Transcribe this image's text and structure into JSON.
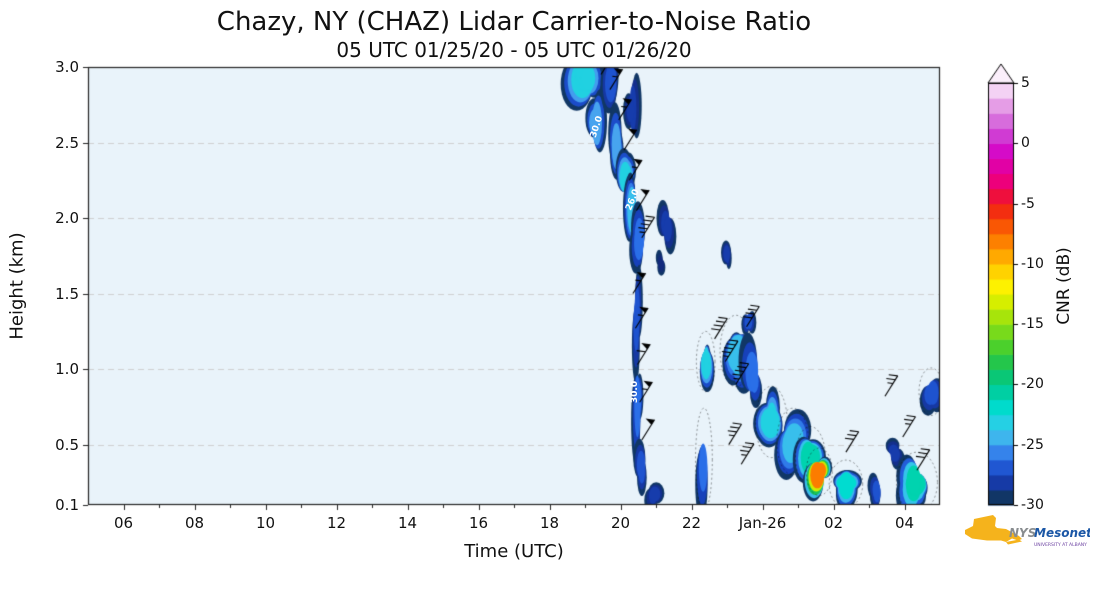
{
  "title": "Chazy, NY (CHAZ) Lidar Carrier-to-Noise Ratio",
  "subtitle": "05 UTC 01/25/20 - 05 UTC 01/26/20",
  "logo": {
    "nys": "NYS",
    "mesonet": "Mesonet",
    "subtext": "UNIVERSITY AT ALBANY",
    "gold": "#f5b31c",
    "nys_color": "#898d90",
    "mesonet_color": "#1b57a6",
    "subtext_color": "#6a3fa0"
  },
  "chart_data": {
    "type": "heatmap",
    "title": "Chazy, NY (CHAZ) Lidar Carrier-to-Noise Ratio",
    "subtitle": "05 UTC 01/25/20 - 05 UTC 01/26/20",
    "xlabel": "Time (UTC)",
    "ylabel": "Height (km)",
    "x_range": [
      5,
      29
    ],
    "y_range": [
      0.1,
      3.0
    ],
    "plot_bg": "#e9f3fa",
    "grid": {
      "horizontal_dashed": true,
      "color": "#cccccc"
    },
    "x_ticks": [
      {
        "hour": 6,
        "label": "06"
      },
      {
        "hour": 8,
        "label": "08"
      },
      {
        "hour": 10,
        "label": "10"
      },
      {
        "hour": 12,
        "label": "12"
      },
      {
        "hour": 14,
        "label": "14"
      },
      {
        "hour": 16,
        "label": "16"
      },
      {
        "hour": 18,
        "label": "18"
      },
      {
        "hour": 20,
        "label": "20"
      },
      {
        "hour": 22,
        "label": "22"
      },
      {
        "hour": 24,
        "label": "Jan-26"
      },
      {
        "hour": 26,
        "label": "02"
      },
      {
        "hour": 28,
        "label": "04"
      }
    ],
    "y_ticks": [
      {
        "value": 0.1,
        "label": "0.1"
      },
      {
        "value": 0.5,
        "label": "0.5"
      },
      {
        "value": 1.0,
        "label": "1.0"
      },
      {
        "value": 1.5,
        "label": "1.5"
      },
      {
        "value": 2.0,
        "label": "2.0"
      },
      {
        "value": 2.5,
        "label": "2.5"
      },
      {
        "value": 3.0,
        "label": "3.0"
      }
    ],
    "colorbar": {
      "label": "CNR (dB)",
      "range": [
        -30,
        5
      ],
      "over_arrow": true,
      "ticks": [
        {
          "value": 5,
          "label": "5"
        },
        {
          "value": 0,
          "label": "0"
        },
        {
          "value": -5,
          "label": "-5"
        },
        {
          "value": -10,
          "label": "-10"
        },
        {
          "value": -15,
          "label": "-15"
        },
        {
          "value": -20,
          "label": "-20"
        },
        {
          "value": -25,
          "label": "-25"
        },
        {
          "value": -30,
          "label": "-30"
        }
      ]
    },
    "colormap_stops": [
      [
        -30,
        "#0d4a3f"
      ],
      [
        -29,
        "#132a7e"
      ],
      [
        -27.5,
        "#1845c3"
      ],
      [
        -26,
        "#2a6fe8"
      ],
      [
        -25,
        "#47a4ef"
      ],
      [
        -23.5,
        "#31ccea"
      ],
      [
        -22,
        "#00dcd0"
      ],
      [
        -20,
        "#00c98e"
      ],
      [
        -18.5,
        "#19c355"
      ],
      [
        -17,
        "#46cf2e"
      ],
      [
        -15,
        "#8fdf13"
      ],
      [
        -13.5,
        "#c9ec00"
      ],
      [
        -12,
        "#fdf400"
      ],
      [
        -10.5,
        "#ffcf00"
      ],
      [
        -9,
        "#ff9c00"
      ],
      [
        -7.5,
        "#fb6c00"
      ],
      [
        -6,
        "#f63a0a"
      ],
      [
        -5,
        "#ee1a1a"
      ],
      [
        -3.5,
        "#f0006e"
      ],
      [
        -2,
        "#e200a2"
      ],
      [
        -0.5,
        "#d40ccb"
      ],
      [
        1,
        "#cf4ad6"
      ],
      [
        2.5,
        "#dd84e0"
      ],
      [
        4,
        "#efc0ef"
      ],
      [
        5,
        "#fbeffb"
      ]
    ],
    "patches": [
      {
        "t": 19.0,
        "h": 2.93,
        "w": 1.0,
        "ht": 0.38,
        "v": -23,
        "dot": 0
      },
      {
        "t": 19.3,
        "h": 2.62,
        "w": 0.55,
        "ht": 0.5,
        "v": -25,
        "dot": 0
      },
      {
        "t": 19.75,
        "h": 2.9,
        "w": 0.55,
        "ht": 0.45,
        "v": -27,
        "dot": 0
      },
      {
        "t": 20.3,
        "h": 2.72,
        "w": 0.6,
        "ht": 0.5,
        "v": -28,
        "dot": 0
      },
      {
        "t": 19.9,
        "h": 2.45,
        "w": 0.5,
        "ht": 0.45,
        "v": -25,
        "dot": 0
      },
      {
        "t": 20.15,
        "h": 2.25,
        "w": 0.5,
        "ht": 0.45,
        "v": -23,
        "dot": 0
      },
      {
        "t": 20.35,
        "h": 2.05,
        "w": 0.5,
        "ht": 0.5,
        "v": -24,
        "dot": 0
      },
      {
        "t": 20.55,
        "h": 1.85,
        "w": 0.45,
        "ht": 0.4,
        "v": -26,
        "dot": 0
      },
      {
        "t": 21.3,
        "h": 1.95,
        "w": 0.55,
        "ht": 0.35,
        "v": -28,
        "dot": 0
      },
      {
        "t": 21.15,
        "h": 1.7,
        "w": 0.3,
        "ht": 0.2,
        "v": -29,
        "dot": 0
      },
      {
        "t": 20.45,
        "h": 1.35,
        "w": 0.35,
        "ht": 0.75,
        "v": -27,
        "dot": 0
      },
      {
        "t": 20.5,
        "h": 0.8,
        "w": 0.32,
        "ht": 0.65,
        "v": -26,
        "dot": 0
      },
      {
        "t": 20.6,
        "h": 0.35,
        "w": 0.4,
        "ht": 0.55,
        "v": -27,
        "dot": 0
      },
      {
        "t": 20.95,
        "h": 0.17,
        "w": 0.55,
        "ht": 0.2,
        "v": -28,
        "dot": 0
      },
      {
        "t": 22.4,
        "h": 1.05,
        "w": 0.5,
        "ht": 0.38,
        "v": -23,
        "dot": 1
      },
      {
        "t": 22.35,
        "h": 0.4,
        "w": 0.45,
        "ht": 0.65,
        "v": -26,
        "dot": 1
      },
      {
        "t": 23.0,
        "h": 1.76,
        "w": 0.32,
        "ht": 0.2,
        "v": -28,
        "dot": 0
      },
      {
        "t": 23.25,
        "h": 1.12,
        "w": 0.85,
        "ht": 0.45,
        "v": -24,
        "dot": 1
      },
      {
        "t": 23.75,
        "h": 0.95,
        "w": 0.6,
        "ht": 0.4,
        "v": -26,
        "dot": 0
      },
      {
        "t": 23.6,
        "h": 1.32,
        "w": 0.4,
        "ht": 0.25,
        "v": -27,
        "dot": 0
      },
      {
        "t": 24.25,
        "h": 0.65,
        "w": 0.85,
        "ht": 0.45,
        "v": -23,
        "dot": 1
      },
      {
        "t": 24.85,
        "h": 0.52,
        "w": 0.85,
        "ht": 0.42,
        "v": -24,
        "dot": 1
      },
      {
        "t": 25.35,
        "h": 0.42,
        "w": 0.8,
        "ht": 0.38,
        "v": -21,
        "dot": 1
      },
      {
        "t": 25.6,
        "h": 0.32,
        "w": 0.7,
        "ht": 0.3,
        "v": -8,
        "dot": 1
      },
      {
        "t": 26.35,
        "h": 0.24,
        "w": 0.9,
        "ht": 0.3,
        "v": -22,
        "dot": 1
      },
      {
        "t": 27.25,
        "h": 0.19,
        "w": 0.6,
        "ht": 0.22,
        "v": -27,
        "dot": 0
      },
      {
        "t": 27.7,
        "h": 0.45,
        "w": 0.45,
        "ht": 0.2,
        "v": -28,
        "dot": 0
      },
      {
        "t": 28.35,
        "h": 0.25,
        "w": 1.1,
        "ht": 0.38,
        "v": -21,
        "dot": 1
      },
      {
        "t": 28.75,
        "h": 0.85,
        "w": 0.65,
        "ht": 0.3,
        "v": -27,
        "dot": 1
      }
    ],
    "wind_barbs": [
      {
        "t": 19.45,
        "h": 2.95,
        "spd": 50
      },
      {
        "t": 19.7,
        "h": 2.85,
        "spd": 55
      },
      {
        "t": 19.95,
        "h": 2.65,
        "spd": 55
      },
      {
        "t": 20.1,
        "h": 2.45,
        "spd": 50
      },
      {
        "t": 20.25,
        "h": 2.25,
        "spd": 55
      },
      {
        "t": 20.45,
        "h": 2.05,
        "spd": 50
      },
      {
        "t": 20.6,
        "h": 1.87,
        "spd": 45
      },
      {
        "t": 20.35,
        "h": 1.5,
        "spd": 55
      },
      {
        "t": 20.42,
        "h": 1.27,
        "spd": 55
      },
      {
        "t": 20.48,
        "h": 1.03,
        "spd": 60
      },
      {
        "t": 20.54,
        "h": 0.78,
        "spd": 55
      },
      {
        "t": 20.6,
        "h": 0.53,
        "spd": 50
      },
      {
        "t": 22.65,
        "h": 1.2,
        "spd": 40
      },
      {
        "t": 22.95,
        "h": 1.05,
        "spd": 45
      },
      {
        "t": 23.25,
        "h": 0.9,
        "spd": 45
      },
      {
        "t": 23.55,
        "h": 1.28,
        "spd": 40
      },
      {
        "t": 23.05,
        "h": 0.5,
        "spd": 35
      },
      {
        "t": 23.4,
        "h": 0.37,
        "spd": 35
      },
      {
        "t": 26.35,
        "h": 0.45,
        "spd": 30
      },
      {
        "t": 27.45,
        "h": 0.82,
        "spd": 25
      },
      {
        "t": 27.95,
        "h": 0.55,
        "spd": 25
      },
      {
        "t": 28.35,
        "h": 0.33,
        "spd": 30
      }
    ],
    "contour_labels": [
      {
        "t": 19.35,
        "h": 2.6,
        "text": "30.0",
        "rot": -72
      },
      {
        "t": 20.35,
        "h": 2.12,
        "text": "26.0",
        "rot": -68
      },
      {
        "t": 20.42,
        "h": 0.85,
        "text": "30.0",
        "rot": -90
      }
    ]
  }
}
